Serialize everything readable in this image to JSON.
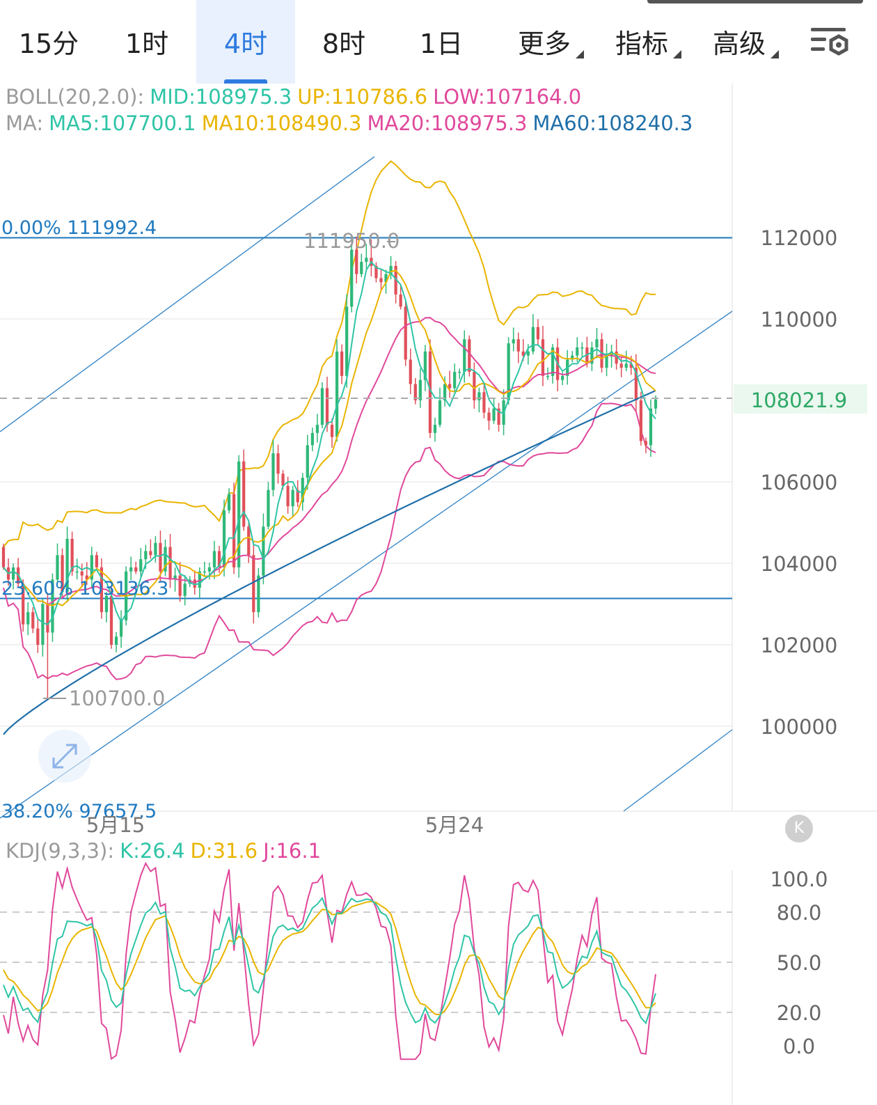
{
  "tabs": [
    {
      "label": "15分",
      "active": false,
      "dropdown": false
    },
    {
      "label": "1时",
      "active": false,
      "dropdown": false
    },
    {
      "label": "4时",
      "active": true,
      "dropdown": false
    },
    {
      "label": "8时",
      "active": false,
      "dropdown": false
    },
    {
      "label": "1日",
      "active": false,
      "dropdown": false
    },
    {
      "label": "更多",
      "active": false,
      "dropdown": true
    },
    {
      "label": "指标",
      "active": false,
      "dropdown": true
    },
    {
      "label": "高级",
      "active": false,
      "dropdown": true
    }
  ],
  "settings_icon": "chart-settings-icon",
  "boll_legend": {
    "name": "BOLL(20,2.0):",
    "mid": "MID:108975.3",
    "up": "UP:110786.6",
    "low": "LOW:107164.0"
  },
  "ma_legend": {
    "name": "MA:",
    "ma5": "MA5:107700.1",
    "ma10": "MA10:108490.3",
    "ma20": "MA20:108975.3",
    "ma60": "MA60:108240.3"
  },
  "kdj_legend": {
    "name": "KDJ(9,3,3):",
    "k": "K:26.4",
    "d": "D:31.6",
    "j": "J:16.1"
  },
  "fib_labels": {
    "fib0": "0.00% 111992.4",
    "fib236": "23.60% 103136.3",
    "fib382": "38.20% 97657.5"
  },
  "high_marker": "111950.0",
  "low_marker": "100700.0",
  "current_price": "108021.9",
  "k_button": "K",
  "colors": {
    "up": "#2fb878",
    "down": "#e0505a",
    "ma5": "#2ec4a6",
    "ma10": "#e9b400",
    "ma20": "#e0489b",
    "ma60": "#1f6fa8",
    "fib": "#1f7ac0"
  },
  "chart_data": [
    {
      "type": "candlestick",
      "title": "",
      "ylim": [
        97657.5,
        114000
      ],
      "y_ticks": [
        "112000",
        "110000",
        "106000",
        "104000",
        "102000",
        "100000"
      ],
      "x_ticks": [
        "5月15",
        "5月24"
      ],
      "fib_levels": [
        111992.4,
        103136.3,
        97657.5
      ],
      "high": 111950.0,
      "low": 100700.0,
      "last": 108021.9,
      "close": [
        103900,
        103600,
        103900,
        103500,
        102500,
        102800,
        102400,
        102000,
        103000,
        102300,
        103600,
        104200,
        103300,
        104600,
        103800,
        103800,
        103700,
        103600,
        104200,
        103900,
        102800,
        103200,
        102000,
        102200,
        102600,
        103800,
        103900,
        103800,
        104100,
        104300,
        104200,
        104500,
        103800,
        104400,
        103600,
        103700,
        103200,
        103500,
        103600,
        103400,
        103800,
        103800,
        103900,
        104300,
        103900,
        105300,
        105700,
        103900,
        106500,
        104900,
        104200,
        102800,
        103700,
        104900,
        105800,
        106700,
        106200,
        105900,
        105400,
        105800,
        105500,
        106100,
        106900,
        107200,
        107400,
        108300,
        107400,
        107100,
        109200,
        108600,
        110300,
        111700,
        111100,
        111400,
        111500,
        111300,
        111000,
        110900,
        111100,
        111300,
        110600,
        110300,
        109000,
        108400,
        108000,
        108500,
        109200,
        107200,
        107400,
        108000,
        108400,
        108300,
        108700,
        108700,
        109500,
        108700,
        108000,
        108200,
        107700,
        107500,
        107800,
        107400,
        108000,
        109400,
        109500,
        109200,
        109100,
        109200,
        109800,
        109500,
        108600,
        108600,
        109300,
        108500,
        108600,
        109000,
        109100,
        109300,
        109300,
        108900,
        109300,
        109500,
        108800,
        109100,
        109200,
        108900,
        108800,
        108900,
        108800,
        108000,
        107000,
        106900,
        107800,
        108022
      ],
      "ma60_start": 99800,
      "ma60_end": 108240.3,
      "boll_last": {
        "mid": 108975.3,
        "up": 110786.6,
        "low": 107164.0
      }
    },
    {
      "type": "line",
      "title": "",
      "ylim": [
        0,
        100
      ],
      "y_ticks": [
        "100.0",
        "80.0",
        "50.0",
        "20.0",
        "0.0"
      ],
      "series": [
        {
          "name": "K",
          "last": 26.4
        },
        {
          "name": "D",
          "last": 31.6
        },
        {
          "name": "J",
          "last": 16.1
        }
      ]
    }
  ]
}
